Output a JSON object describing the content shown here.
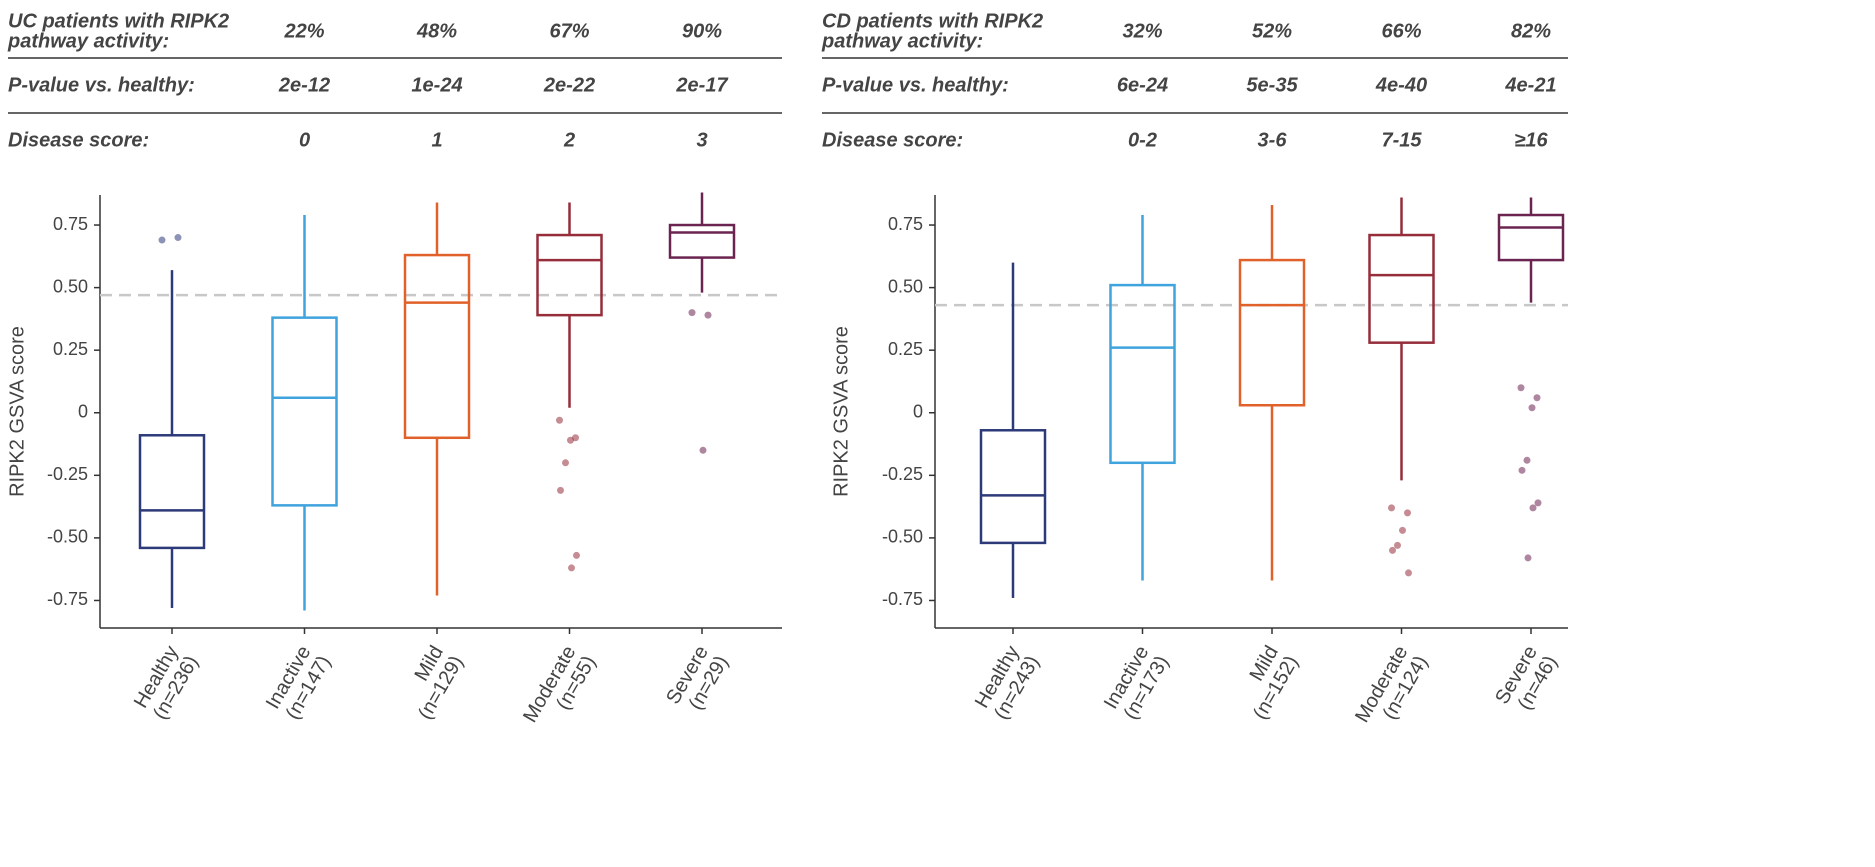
{
  "chart_data": [
    {
      "type": "box",
      "header": {
        "rows": [
          {
            "label_lines": [
              "UC patients with RIPK2",
              "pathway activity:"
            ],
            "values": [
              "22%",
              "48%",
              "67%",
              "90%"
            ]
          },
          {
            "label_lines": [
              "P-value vs. healthy:"
            ],
            "values": [
              "2e-12",
              "1e-24",
              "2e-22",
              "2e-17"
            ]
          },
          {
            "label_lines": [
              "Disease score:"
            ],
            "values": [
              "0",
              "1",
              "2",
              "3"
            ]
          }
        ]
      },
      "ylabel": "RIPK2 GSVA score",
      "ylim": [
        -0.86,
        0.87
      ],
      "yticks": [
        -0.75,
        {
          "value": -0.5,
          "label": "-0.50"
        },
        -0.25,
        0,
        0.25,
        {
          "value": 0.5,
          "label": "0.50"
        },
        0.75
      ],
      "threshold": 0.47,
      "boxes": [
        {
          "name": "Healthy",
          "n": "(n=236)",
          "color": "#2d3a7a",
          "whisker_low": -0.78,
          "q1": -0.54,
          "median": -0.39,
          "q3": -0.09,
          "whisker_high": 0.57,
          "outliers": [
            0.69,
            0.7
          ]
        },
        {
          "name": "Inactive",
          "n": "(n=147)",
          "color": "#3fa3dd",
          "whisker_low": -0.79,
          "q1": -0.37,
          "median": 0.06,
          "q3": 0.38,
          "whisker_high": 0.79,
          "outliers": []
        },
        {
          "name": "Mild",
          "n": "(n=129)",
          "color": "#e0622a",
          "whisker_low": -0.73,
          "q1": -0.1,
          "median": 0.44,
          "q3": 0.63,
          "whisker_high": 0.84,
          "outliers": []
        },
        {
          "name": "Moderate",
          "n": "(n=55)",
          "color": "#962d3a",
          "whisker_low": 0.02,
          "q1": 0.39,
          "median": 0.61,
          "q3": 0.71,
          "whisker_high": 0.84,
          "outliers": [
            -0.03,
            -0.1,
            -0.11,
            -0.2,
            -0.31,
            -0.57,
            -0.62
          ]
        },
        {
          "name": "Severe",
          "n": "(n=29)",
          "color": "#6b2350",
          "whisker_low": 0.48,
          "q1": 0.62,
          "median": 0.72,
          "q3": 0.75,
          "whisker_high": 0.88,
          "outliers": [
            0.4,
            0.39,
            -0.15
          ]
        }
      ]
    },
    {
      "type": "box",
      "header": {
        "rows": [
          {
            "label_lines": [
              "CD patients with RIPK2",
              "pathway activity:"
            ],
            "values": [
              "32%",
              "52%",
              "66%",
              "82%"
            ]
          },
          {
            "label_lines": [
              "P-value vs. healthy:"
            ],
            "values": [
              "6e-24",
              "5e-35",
              "4e-40",
              "4e-21"
            ]
          },
          {
            "label_lines": [
              "Disease score:"
            ],
            "values": [
              "0-2",
              "3-6",
              "7-15",
              "≥16"
            ]
          }
        ]
      },
      "ylabel": "RIPK2 GSVA score",
      "ylim": [
        -0.86,
        0.87
      ],
      "yticks": [
        -0.75,
        {
          "value": -0.5,
          "label": "-0.50"
        },
        -0.25,
        0,
        0.25,
        {
          "value": 0.5,
          "label": "0.50"
        },
        0.75
      ],
      "threshold": 0.43,
      "boxes": [
        {
          "name": "Healthy",
          "n": "(n=243)",
          "color": "#2d3a7a",
          "whisker_low": -0.74,
          "q1": -0.52,
          "median": -0.33,
          "q3": -0.07,
          "whisker_high": 0.6,
          "outliers": []
        },
        {
          "name": "Inactive",
          "n": "(n=173)",
          "color": "#3fa3dd",
          "whisker_low": -0.67,
          "q1": -0.2,
          "median": 0.26,
          "q3": 0.51,
          "whisker_high": 0.79,
          "outliers": []
        },
        {
          "name": "Mild",
          "n": "(n=152)",
          "color": "#e0622a",
          "whisker_low": -0.67,
          "q1": 0.03,
          "median": 0.43,
          "q3": 0.61,
          "whisker_high": 0.83,
          "outliers": []
        },
        {
          "name": "Moderate",
          "n": "(n=124)",
          "color": "#962d3a",
          "whisker_low": -0.27,
          "q1": 0.28,
          "median": 0.55,
          "q3": 0.71,
          "whisker_high": 0.86,
          "outliers": [
            -0.38,
            -0.4,
            -0.47,
            -0.53,
            -0.55,
            -0.64
          ]
        },
        {
          "name": "Severe",
          "n": "(n=46)",
          "color": "#6b2350",
          "whisker_low": 0.44,
          "q1": 0.61,
          "median": 0.74,
          "q3": 0.79,
          "whisker_high": 0.86,
          "outliers": [
            0.1,
            0.06,
            0.02,
            -0.19,
            -0.23,
            -0.36,
            -0.38,
            -0.58
          ]
        }
      ]
    }
  ]
}
